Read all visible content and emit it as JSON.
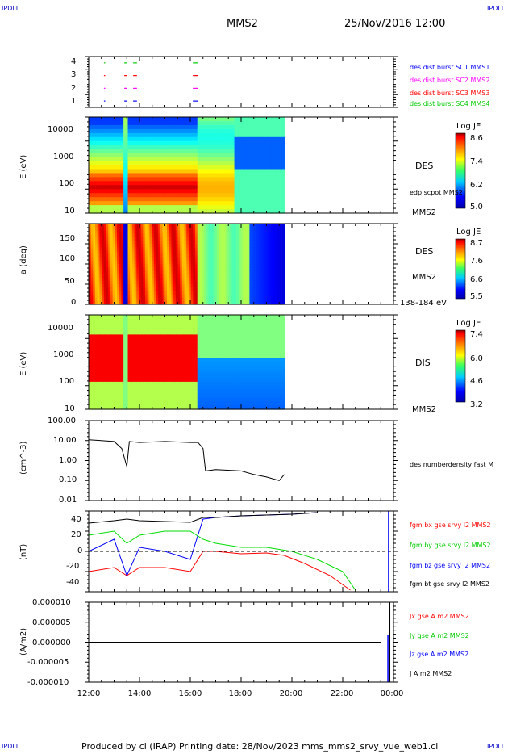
{
  "page": {
    "corner_left_top": "IPDLI",
    "corner_right_top": "IPDLI",
    "corner_left_bottom": "IPDLI",
    "corner_right_bottom": "IPDLI",
    "title": "MMS2",
    "date": "25/Nov/2016 12:00",
    "footer": "Produced by cl (IRAP)   Printing date: 28/Nov/2023   mms_mms2_srvy_vue_web1.cl"
  },
  "colors": {
    "mms1": "#0000ff",
    "mms2": "#ff00ff",
    "mms3": "#ff0000",
    "mms4": "#00cc00",
    "bx": "#ff0000",
    "by": "#00dd00",
    "bz": "#0000ff",
    "bt": "#000000",
    "jx": "#ff0000",
    "jy": "#00dd00",
    "jz": "#0000ff",
    "j": "#000000"
  },
  "panel1": {
    "yticks": [
      "4",
      "3",
      "2",
      "1"
    ],
    "legend": [
      {
        "text": "des dist burst SC1 MMS1",
        "color": "#0000ff"
      },
      {
        "text": "des dist burst SC2 MMS2",
        "color": "#ff00ff"
      },
      {
        "text": "des dist burst SC3 MMS3",
        "color": "#ff0000"
      },
      {
        "text": "des dist burst SC4 MMS4",
        "color": "#00cc00"
      }
    ]
  },
  "panel2": {
    "ylabel": "E (eV)",
    "yticks": [
      "10000",
      "1000",
      "100",
      "10"
    ],
    "right_label": "DES",
    "right_sublabel": "edp scpot MMS2",
    "right_bottom": "MMS2",
    "colorbar": {
      "title": "Log JE",
      "ticks": [
        "8.6",
        "7.4",
        "6.2",
        "5.0"
      ]
    }
  },
  "panel3": {
    "ylabel": "a (deg)",
    "yticks": [
      "150",
      "100",
      "50",
      "0"
    ],
    "right_label": "DES",
    "right_sublabel": "MMS2",
    "right_bottom": "138-184 eV",
    "colorbar": {
      "title": "Log JE",
      "ticks": [
        "8.7",
        "7.6",
        "6.6",
        "5.5"
      ]
    }
  },
  "panel4": {
    "ylabel": "E (eV)",
    "yticks": [
      "10000",
      "1000",
      "100",
      "10"
    ],
    "right_label": "DIS",
    "right_bottom": "MMS2",
    "colorbar": {
      "title": "Log JE",
      "ticks": [
        "7.4",
        "6.0",
        "4.6",
        "3.2"
      ]
    }
  },
  "panel5": {
    "ylabel": "(cm^-3)",
    "yticks": [
      "100.00",
      "10.00",
      "1.00",
      "0.10",
      "0.01"
    ],
    "right_label": "des numberdensity fast M"
  },
  "panel6": {
    "ylabel": "(nT)",
    "yticks": [
      "40",
      "20",
      "0",
      "-20",
      "-40"
    ],
    "legend": [
      {
        "text": "fgm bx gse srvy l2 MMS2",
        "color": "#ff0000"
      },
      {
        "text": "fgm by gse srvy l2 MMS2",
        "color": "#00cc00"
      },
      {
        "text": "fgm bz gse srvy l2 MMS2",
        "color": "#0000ff"
      },
      {
        "text": "fgm bt gse srvy l2 MMS2",
        "color": "#000000"
      }
    ]
  },
  "panel7": {
    "ylabel": "(A/m2)",
    "yticks": [
      "0.000010",
      "0.000005",
      "0.000000",
      "-0.000005",
      "-0.000010"
    ],
    "legend": [
      {
        "text": "Jx gse A m2 MMS2",
        "color": "#ff0000"
      },
      {
        "text": "Jy gse A m2 MMS2",
        "color": "#00cc00"
      },
      {
        "text": "Jz gse A m2 MMS2",
        "color": "#0000ff"
      },
      {
        "text": "J A m2 MMS2",
        "color": "#000000"
      }
    ]
  },
  "xaxis": {
    "ticks": [
      "12:00",
      "14:00",
      "16:00",
      "18:00",
      "20:00",
      "22:00",
      "00:00"
    ]
  },
  "chart_data": [
    {
      "type": "scatter",
      "description_units": "spacecraft burst availability (1-4)",
      "x_range": [
        "12:00",
        "24:00"
      ],
      "y_range": [
        0.5,
        4.5
      ],
      "series": [
        {
          "name": "des dist burst SC1 MMS1",
          "y": 1,
          "segments_hours": [
            [
              12.6,
              12.65
            ],
            [
              13.4,
              13.5
            ],
            [
              13.75,
              13.9
            ],
            [
              16.1,
              16.3
            ]
          ]
        },
        {
          "name": "des dist burst SC2 MMS2",
          "y": 2,
          "segments_hours": [
            [
              12.6,
              12.65
            ],
            [
              13.4,
              13.5
            ],
            [
              13.75,
              13.9
            ],
            [
              16.1,
              16.3
            ]
          ]
        },
        {
          "name": "des dist burst SC3 MMS3",
          "y": 3,
          "segments_hours": [
            [
              12.6,
              12.65
            ],
            [
              13.4,
              13.5
            ],
            [
              13.75,
              13.9
            ],
            [
              16.1,
              16.3
            ]
          ]
        },
        {
          "name": "des dist burst SC4 MMS4",
          "y": 4,
          "segments_hours": [
            [
              12.6,
              12.65
            ],
            [
              13.4,
              13.5
            ],
            [
              13.75,
              13.9
            ],
            [
              16.1,
              16.3
            ]
          ]
        }
      ]
    },
    {
      "type": "heatmap",
      "ylabel": "E (eV)",
      "y_scale": "log",
      "ylim": [
        10,
        30000
      ],
      "colorbar_title": "Log JE",
      "colorbar_range": [
        5.0,
        8.6
      ],
      "data_end_hour": 19.7,
      "regions": [
        {
          "x": [
            12.0,
            13.3
          ],
          "note": "peak ~8.4 at 40-200 eV; ~6.2 at >1000 eV"
        },
        {
          "x": [
            13.3,
            13.6
          ],
          "note": "low flux, elevated at high energy"
        },
        {
          "x": [
            13.6,
            16.3
          ],
          "note": "peak ~8.3 at 50-200 eV"
        },
        {
          "x": [
            16.3,
            17.7
          ],
          "note": "~7.0 broad band 100-15000 eV"
        },
        {
          "x": [
            17.7,
            19.7
          ],
          "note": "~6.6 falling; low at 300-3000 eV"
        }
      ]
    },
    {
      "type": "heatmap",
      "ylabel": "a (deg)",
      "ylim": [
        0,
        180
      ],
      "colorbar_title": "Log JE",
      "colorbar_range": [
        5.5,
        8.7
      ],
      "data_end_hour": 19.7,
      "regions": [
        {
          "x": [
            12.0,
            13.3
          ],
          "note": "~8.2 all pitch angles"
        },
        {
          "x": [
            13.3,
            13.5
          ],
          "note": "minimum ~5.8"
        },
        {
          "x": [
            13.5,
            16.3
          ],
          "note": "~8.2 all pitch angles"
        },
        {
          "x": [
            16.3,
            18.3
          ],
          "note": "~7.0"
        },
        {
          "x": [
            18.3,
            19.7
          ],
          "note": "~6.3 falling to 5.7"
        }
      ]
    },
    {
      "type": "heatmap",
      "ylabel": "E (eV)",
      "y_scale": "log",
      "ylim": [
        10,
        30000
      ],
      "colorbar_title": "Log JE",
      "colorbar_range": [
        3.2,
        7.4
      ],
      "data_end_hour": 19.7,
      "regions": [
        {
          "x": [
            12.0,
            13.3
          ],
          "note": "peak ~7.2 at 300-3000 eV"
        },
        {
          "x": [
            13.3,
            13.6
          ],
          "note": "~5.8"
        },
        {
          "x": [
            13.6,
            16.3
          ],
          "note": "peak ~7.2 at 300-3000 eV"
        },
        {
          "x": [
            16.3,
            19.7
          ],
          "note": "~5.4 at high energy; ~4.0 below 100 eV"
        }
      ]
    },
    {
      "type": "line",
      "ylabel": "(cm^-3)",
      "y_scale": "log",
      "ylim": [
        0.01,
        100
      ],
      "series": [
        {
          "name": "des numberdensity fast M",
          "x": [
            12.0,
            12.5,
            13.0,
            13.3,
            13.5,
            13.6,
            14.0,
            15.0,
            16.0,
            16.3,
            16.5,
            16.6,
            17.0,
            18.0,
            18.5,
            19.0,
            19.5,
            19.7
          ],
          "y": [
            11,
            10,
            9,
            4,
            0.5,
            9,
            8,
            9,
            8,
            8,
            4,
            0.3,
            0.35,
            0.3,
            0.2,
            0.15,
            0.1,
            0.2
          ]
        }
      ]
    },
    {
      "type": "line",
      "ylabel": "(nT)",
      "ylim": [
        -50,
        50
      ],
      "series": [
        {
          "name": "fgm bx gse srvy l2 MMS2",
          "x": [
            12.0,
            13.0,
            13.5,
            14.0,
            15.0,
            16.0,
            16.5,
            17.0,
            18.0,
            19.0,
            19.7,
            20.5,
            21.5,
            22.3
          ],
          "y": [
            -25,
            -20,
            -30,
            -20,
            -20,
            -25,
            0,
            0,
            -3,
            -2,
            -5,
            -15,
            -30,
            -48
          ]
        },
        {
          "name": "fgm by gse srvy l2 MMS2",
          "x": [
            12.0,
            13.0,
            13.5,
            14.0,
            15.0,
            16.0,
            16.5,
            17.0,
            18.0,
            19.0,
            20.0,
            21.0,
            22.0,
            22.5
          ],
          "y": [
            20,
            25,
            10,
            20,
            25,
            25,
            15,
            10,
            5,
            5,
            0,
            -10,
            -25,
            -48
          ]
        },
        {
          "name": "fgm bz gse srvy l2 MMS2",
          "x": [
            12.0,
            13.0,
            13.5,
            14.0,
            15.0,
            16.0,
            16.5,
            17.0,
            18.0,
            19.0,
            20.0,
            21.0
          ],
          "y": [
            0,
            15,
            -30,
            5,
            0,
            -10,
            40,
            42,
            44,
            45,
            46,
            48
          ]
        },
        {
          "name": "fgm bt gse srvy l2 MMS2",
          "x": [
            12.0,
            13.0,
            13.5,
            14.0,
            15.0,
            16.0,
            16.5,
            17.0,
            18.0,
            19.0,
            20.0,
            21.0
          ],
          "y": [
            35,
            38,
            40,
            38,
            37,
            36,
            42,
            42,
            44,
            45,
            46,
            48
          ]
        }
      ]
    },
    {
      "type": "line",
      "ylabel": "(A/m2)",
      "ylim": [
        -1e-05,
        1e-05
      ],
      "series": [
        {
          "name": "Jx gse A m2 MMS2",
          "x": [
            12.0,
            23.5
          ],
          "y": [
            0.0,
            0.0
          ]
        },
        {
          "name": "Jy gse A m2 MMS2",
          "x": [
            12.0,
            23.5
          ],
          "y": [
            0.0,
            0.0
          ]
        },
        {
          "name": "Jz gse A m2 MMS2",
          "x": [
            12.0,
            23.5
          ],
          "y": [
            0.0,
            0.0
          ]
        },
        {
          "name": "J A m2 MMS2",
          "x": [
            12.0,
            23.5
          ],
          "y": [
            0.0,
            0.0
          ]
        }
      ]
    }
  ]
}
